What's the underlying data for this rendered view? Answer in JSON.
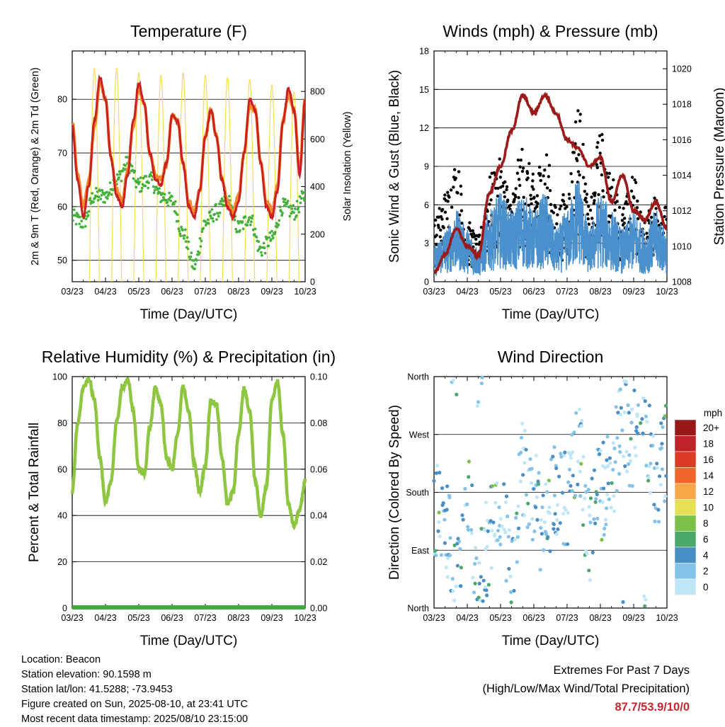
{
  "colors": {
    "temp_2m": "#cc1f1f",
    "temp_9m": "#f08a2a",
    "dewpoint": "#46b03c",
    "solar": "#f4dc5a",
    "wind": "#4a90cc",
    "gust": "#000000",
    "pressure": "#9b1b1b",
    "humidity": "#8fc641",
    "precip": "#3faa3f",
    "extremes_text": "#c0282d"
  },
  "chart_data": [
    {
      "type": "line",
      "title": "Temperature (F)",
      "xlabel": "Time (Day/UTC)",
      "ylabel": "2m & 9m T (Red, Orange) & 2m Td (Green)",
      "ylabel_right": "Solar Insolation (Yellow)",
      "x_ticks": [
        "03/23",
        "04/23",
        "05/23",
        "06/23",
        "07/23",
        "08/23",
        "09/23",
        "10/23"
      ],
      "ylim": [
        46,
        89
      ],
      "y_ticks": [
        50,
        60,
        70,
        80
      ],
      "ylim_right": [
        0,
        970
      ],
      "y_ticks_right": [
        0,
        200,
        400,
        600,
        800
      ],
      "grid": true,
      "series": [
        {
          "name": "2m T",
          "color_key": "temp_2m",
          "x": [
            0,
            0.5,
            1,
            1.5,
            2,
            2.5,
            3,
            3.5,
            4,
            4.5,
            5,
            5.5,
            6,
            6.5,
            7,
            7.5,
            8,
            8.5,
            9,
            9.5,
            10,
            10.5,
            11,
            11.5,
            12,
            12.5,
            13,
            13.5,
            14,
            14.5,
            15,
            15.5,
            16,
            16.5,
            17,
            17.5,
            18,
            18.5,
            19,
            19.5,
            20,
            20.5,
            21
          ],
          "values": [
            75,
            65,
            58,
            64,
            76,
            84,
            80,
            69,
            62,
            60,
            66,
            76,
            83,
            79,
            70,
            65,
            64,
            68,
            77,
            76,
            68,
            60,
            58,
            63,
            73,
            78,
            73,
            65,
            60,
            58,
            61,
            70,
            80,
            78,
            68,
            60,
            58,
            63,
            76,
            82,
            78,
            66,
            80
          ]
        },
        {
          "name": "9m T",
          "color_key": "temp_9m",
          "x": [
            0,
            0.5,
            1,
            1.5,
            2,
            2.5,
            3,
            3.5,
            4,
            4.5,
            5,
            5.5,
            6,
            6.5,
            7,
            7.5,
            8,
            8.5,
            9,
            9.5,
            10,
            10.5,
            11,
            11.5,
            12,
            12.5,
            13,
            13.5,
            14,
            14.5,
            15,
            15.5,
            16,
            16.5,
            17,
            17.5,
            18,
            18.5,
            19,
            19.5,
            20,
            20.5,
            21
          ],
          "values": [
            76,
            66,
            60,
            65,
            75,
            83,
            80,
            69,
            63,
            61,
            67,
            75,
            82,
            79,
            70,
            66,
            65,
            68,
            77,
            76,
            68,
            61,
            59,
            63,
            73,
            78,
            73,
            65,
            61,
            59,
            62,
            70,
            79,
            78,
            68,
            61,
            59,
            64,
            76,
            81,
            78,
            67,
            80
          ]
        },
        {
          "name": "2m Td",
          "color_key": "dewpoint",
          "x": [
            0,
            1,
            2,
            3,
            4,
            5,
            6,
            7,
            8,
            9,
            10,
            11,
            12,
            13,
            14,
            15,
            16,
            17,
            18,
            19,
            20,
            21
          ],
          "values": [
            58,
            57,
            62,
            62,
            65,
            68,
            64,
            65,
            62,
            61,
            55,
            49,
            57,
            59,
            61,
            56,
            58,
            52,
            54,
            60,
            59,
            62
          ]
        },
        {
          "name": "Solar",
          "color_key": "solar",
          "axis": "right",
          "x": [
            0,
            1,
            2,
            3,
            4,
            5,
            6,
            7,
            8,
            9,
            10,
            11,
            12,
            13,
            14,
            15,
            16,
            17,
            18,
            19,
            20,
            21
          ],
          "values": [
            0,
            0,
            900,
            0,
            900,
            0,
            880,
            0,
            870,
            0,
            880,
            0,
            870,
            0,
            860,
            0,
            850,
            0,
            830,
            0,
            800,
            0
          ]
        }
      ]
    },
    {
      "type": "line",
      "title": "Winds (mph) & Pressure (mb)",
      "xlabel": "Time (Day/UTC)",
      "ylabel": "Sonic Wind & Gust (Blue, Black)",
      "ylabel_right": "Station Pressure (Maroon)",
      "x_ticks": [
        "03/23",
        "04/23",
        "05/23",
        "06/23",
        "07/23",
        "08/23",
        "09/23",
        "10/23"
      ],
      "ylim": [
        0,
        18
      ],
      "y_ticks": [
        0,
        3,
        6,
        9,
        12,
        15,
        18
      ],
      "ylim_right": [
        1008,
        1021
      ],
      "y_ticks_right": [
        1008,
        1010,
        1012,
        1014,
        1016,
        1018,
        1020
      ],
      "grid": true,
      "series": [
        {
          "name": "Sonic Wind",
          "color_key": "wind",
          "x": [
            0,
            1,
            2,
            3,
            4,
            5,
            6,
            7,
            8,
            9,
            10,
            11,
            12,
            13,
            14,
            15,
            16,
            17,
            18,
            19,
            20,
            21
          ],
          "values": [
            2,
            3,
            4,
            3,
            2,
            4,
            5,
            4,
            5,
            4,
            5,
            3,
            4,
            6,
            3,
            5,
            4,
            3,
            4,
            3,
            4,
            3
          ]
        },
        {
          "name": "Gust",
          "color_key": "gust",
          "x": [
            0,
            1,
            2,
            3,
            4,
            5,
            6,
            7,
            8,
            9,
            10,
            11,
            12,
            13,
            14,
            15,
            16,
            17,
            18,
            19,
            20,
            21
          ],
          "values": [
            4,
            6,
            8,
            4,
            3,
            7,
            8,
            6,
            9,
            7,
            9,
            5,
            6,
            12,
            5,
            10,
            7,
            5,
            7,
            4,
            6,
            5
          ]
        },
        {
          "name": "Station Pressure",
          "color_key": "pressure",
          "axis": "right",
          "x": [
            0,
            1,
            2,
            3,
            4,
            5,
            6,
            7,
            8,
            9,
            10,
            11,
            12,
            13,
            14,
            15,
            16,
            17,
            18,
            19,
            20,
            21
          ],
          "values": [
            1008.5,
            1009.5,
            1011,
            1010,
            1009.5,
            1013,
            1014.5,
            1016.5,
            1018.5,
            1017.5,
            1018.5,
            1017.5,
            1016,
            1015.5,
            1014.5,
            1015,
            1012.5,
            1014,
            1012,
            1011.5,
            1012.5,
            1011
          ]
        }
      ]
    },
    {
      "type": "line",
      "title": "Relative Humidity (%) & Precipitation (in)",
      "xlabel": "Time (Day/UTC)",
      "ylabel": "Percent & Total Rainfall",
      "x_ticks": [
        "03/23",
        "04/23",
        "05/23",
        "06/23",
        "07/23",
        "08/23",
        "09/23",
        "10/23"
      ],
      "ylim": [
        0,
        100
      ],
      "y_ticks": [
        0,
        20,
        40,
        60,
        80,
        100
      ],
      "ylim_right": [
        0,
        0.1
      ],
      "y_ticks_right": [
        "0.00",
        "0.02",
        "0.04",
        "0.06",
        "0.08",
        "0.10"
      ],
      "grid": true,
      "series": [
        {
          "name": "Relative Humidity",
          "color_key": "humidity",
          "x": [
            0,
            0.5,
            1,
            1.5,
            2,
            2.5,
            3,
            3.5,
            4,
            4.5,
            5,
            5.5,
            6,
            6.5,
            7,
            7.5,
            8,
            8.5,
            9,
            9.5,
            10,
            10.5,
            11,
            11.5,
            12,
            12.5,
            13,
            13.5,
            14,
            14.5,
            15,
            15.5,
            16,
            16.5,
            17,
            17.5,
            18,
            18.5,
            19,
            19.5,
            20,
            20.5,
            21
          ],
          "values": [
            50,
            80,
            95,
            99,
            90,
            65,
            45,
            55,
            80,
            95,
            99,
            85,
            60,
            58,
            78,
            95,
            88,
            65,
            60,
            75,
            96,
            85,
            62,
            50,
            62,
            90,
            88,
            65,
            45,
            50,
            75,
            95,
            85,
            55,
            40,
            52,
            90,
            98,
            75,
            45,
            36,
            42,
            55
          ]
        },
        {
          "name": "Total Precipitation",
          "color_key": "precip",
          "axis": "right",
          "x": [
            0,
            21
          ],
          "values": [
            0,
            0
          ]
        }
      ]
    },
    {
      "type": "scatter",
      "title": "Wind Direction",
      "xlabel": "Time (Day/UTC)",
      "ylabel": "Direction (Colored By Speed)",
      "x_ticks": [
        "03/23",
        "04/23",
        "05/23",
        "06/23",
        "07/23",
        "08/23",
        "09/23",
        "10/23"
      ],
      "y_ticks": [
        "North",
        "East",
        "South",
        "West",
        "North"
      ],
      "ylim": [
        0,
        360
      ],
      "grid": true,
      "colorbar": {
        "title": "mph",
        "labels": [
          "0",
          "2",
          "4",
          "6",
          "8",
          "10",
          "12",
          "14",
          "16",
          "18",
          "20+"
        ],
        "colors": [
          "#bfe6f7",
          "#84c2e8",
          "#4a8ec6",
          "#4aa86a",
          "#7cc04a",
          "#e6e055",
          "#f6a644",
          "#f0662a",
          "#dc3a26",
          "#c0222a",
          "#981818"
        ]
      },
      "series": [
        {
          "name": "Wind Direction",
          "x": [
            0,
            1,
            2,
            3,
            4,
            5,
            6,
            7,
            8,
            9,
            10,
            11,
            12,
            13,
            14,
            15,
            16,
            17,
            18,
            19,
            20,
            21
          ],
          "values": [
            160,
            130,
            40,
            200,
            30,
            110,
            160,
            60,
            220,
            170,
            120,
            190,
            170,
            250,
            120,
            180,
            200,
            290,
            260,
            300,
            200,
            250
          ]
        }
      ]
    }
  ],
  "info": {
    "location": "Location: Beacon",
    "elevation": "Station elevation: 90.1598 m",
    "latlon": "Station lat/lon: 41.5288; -73.9453",
    "created": "Figure created on Sun, 2025-08-10, at 23:41 UTC",
    "recent": "Most recent data timestamp: 2025/08/10 23:15:00"
  },
  "extremes": {
    "line1": "Extremes For Past 7 Days",
    "line2": "(High/Low/Max Wind/Total Precipitation)",
    "values": "87.7/53.9/10/0"
  }
}
